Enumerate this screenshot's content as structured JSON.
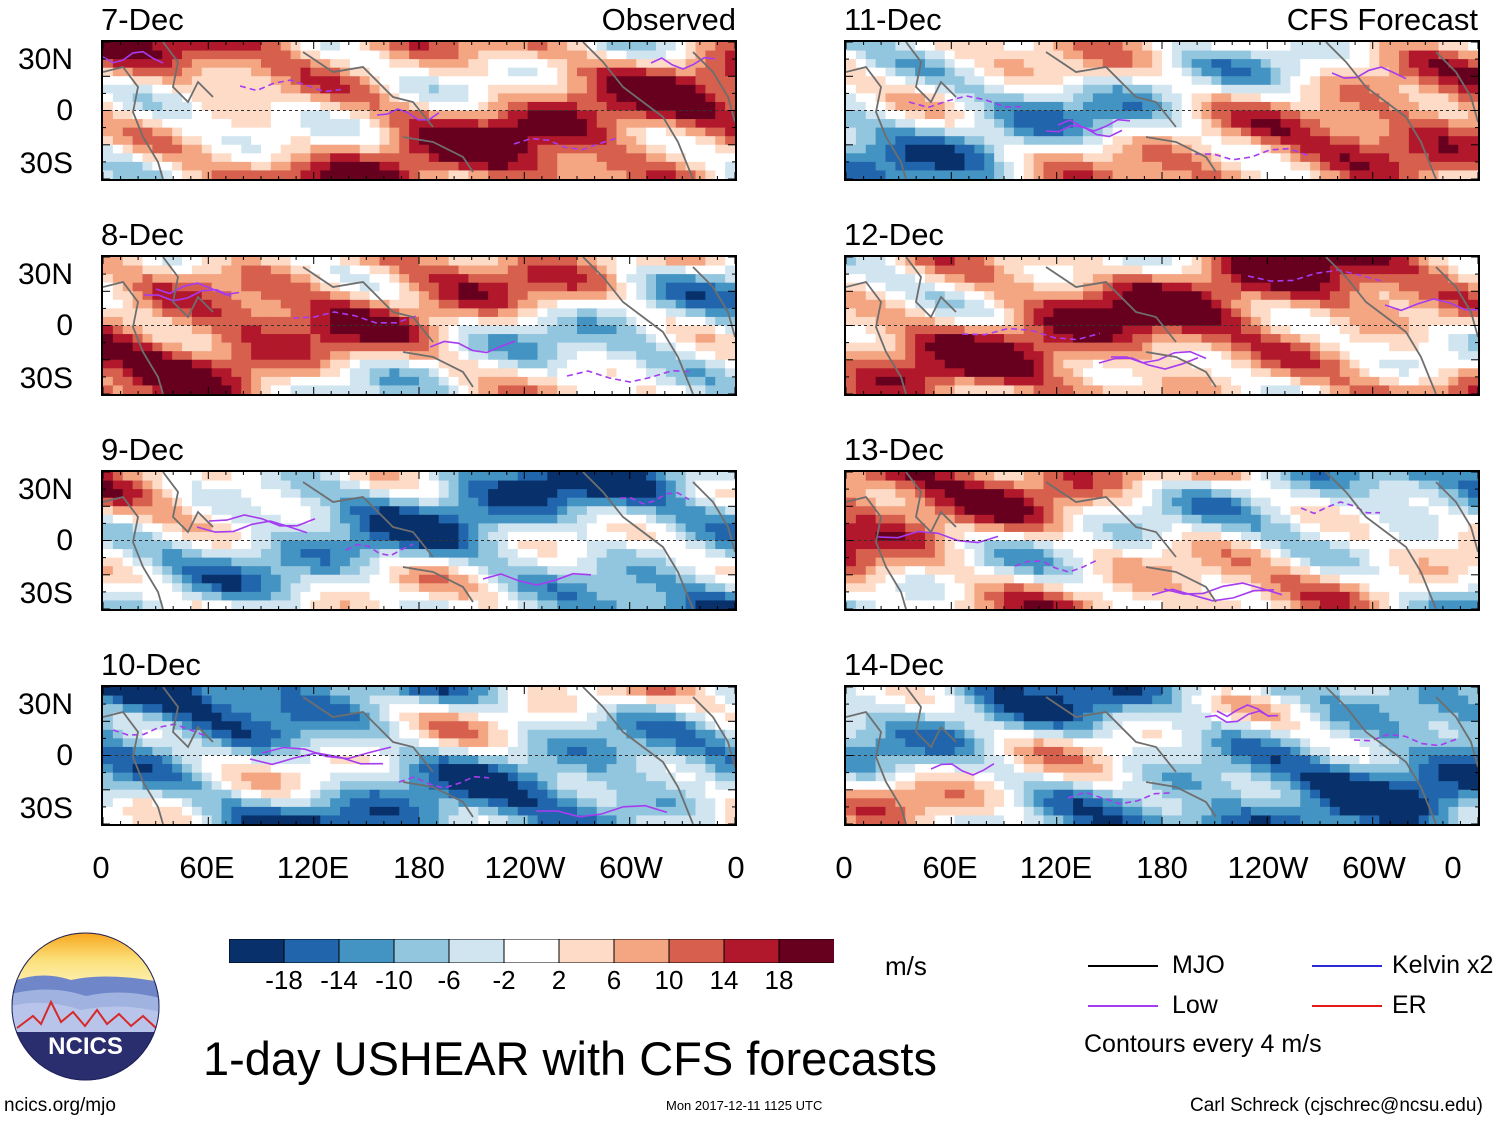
{
  "title": "1-day USHEAR with CFS forecasts",
  "columns": {
    "left_header": "Observed",
    "right_header": "CFS Forecast"
  },
  "panels_left": [
    "7-Dec",
    "8-Dec",
    "9-Dec",
    "10-Dec"
  ],
  "panels_right": [
    "11-Dec",
    "12-Dec",
    "13-Dec",
    "14-Dec"
  ],
  "y_ticks": [
    "30N",
    "0",
    "30S"
  ],
  "x_ticks": [
    "0",
    "60E",
    "120E",
    "180",
    "120W",
    "60W",
    "0"
  ],
  "colorbar": {
    "labels": [
      "-18",
      "-14",
      "-10",
      "-6",
      "-2",
      "2",
      "6",
      "10",
      "14",
      "18"
    ],
    "colors": [
      "#08306b",
      "#2166ac",
      "#4393c3",
      "#92c5de",
      "#d1e5f0",
      "#ffffff",
      "#fddbc7",
      "#f4a582",
      "#d6604d",
      "#b2182b",
      "#67001f"
    ],
    "units": "m/s"
  },
  "legend": {
    "mjo": "MJO",
    "kelvin": "Kelvin x2",
    "low": "Low",
    "er": "ER",
    "note": "Contours every 4 m/s",
    "colors": {
      "mjo": "#000000",
      "kelvin": "#2b2bd6",
      "low": "#a63cf0",
      "er": "#e21a1a"
    }
  },
  "logo": {
    "text": "NCICS"
  },
  "footer": {
    "url": "ncics.org/mjo",
    "timestamp": "Mon 2017-12-11 1125 UTC",
    "author": "Carl Schreck (cjschrec@ncsu.edu)"
  },
  "chart_data": {
    "type": "heatmap",
    "variable": "USHEAR",
    "units": "m/s",
    "lat_ticks": [
      "30N",
      "0",
      "30S"
    ],
    "lon_ticks": [
      "0",
      "60E",
      "120E",
      "180",
      "120W",
      "60W",
      "0"
    ],
    "color_levels": [
      -18,
      -14,
      -10,
      -6,
      -2,
      2,
      6,
      10,
      14,
      18
    ],
    "contour_interval": 4,
    "observed_dates": [
      "7-Dec",
      "8-Dec",
      "9-Dec",
      "10-Dec"
    ],
    "forecast_dates": [
      "11-Dec",
      "12-Dec",
      "13-Dec",
      "14-Dec"
    ],
    "contours": [
      "MJO",
      "Kelvin x2",
      "Low",
      "ER"
    ]
  }
}
